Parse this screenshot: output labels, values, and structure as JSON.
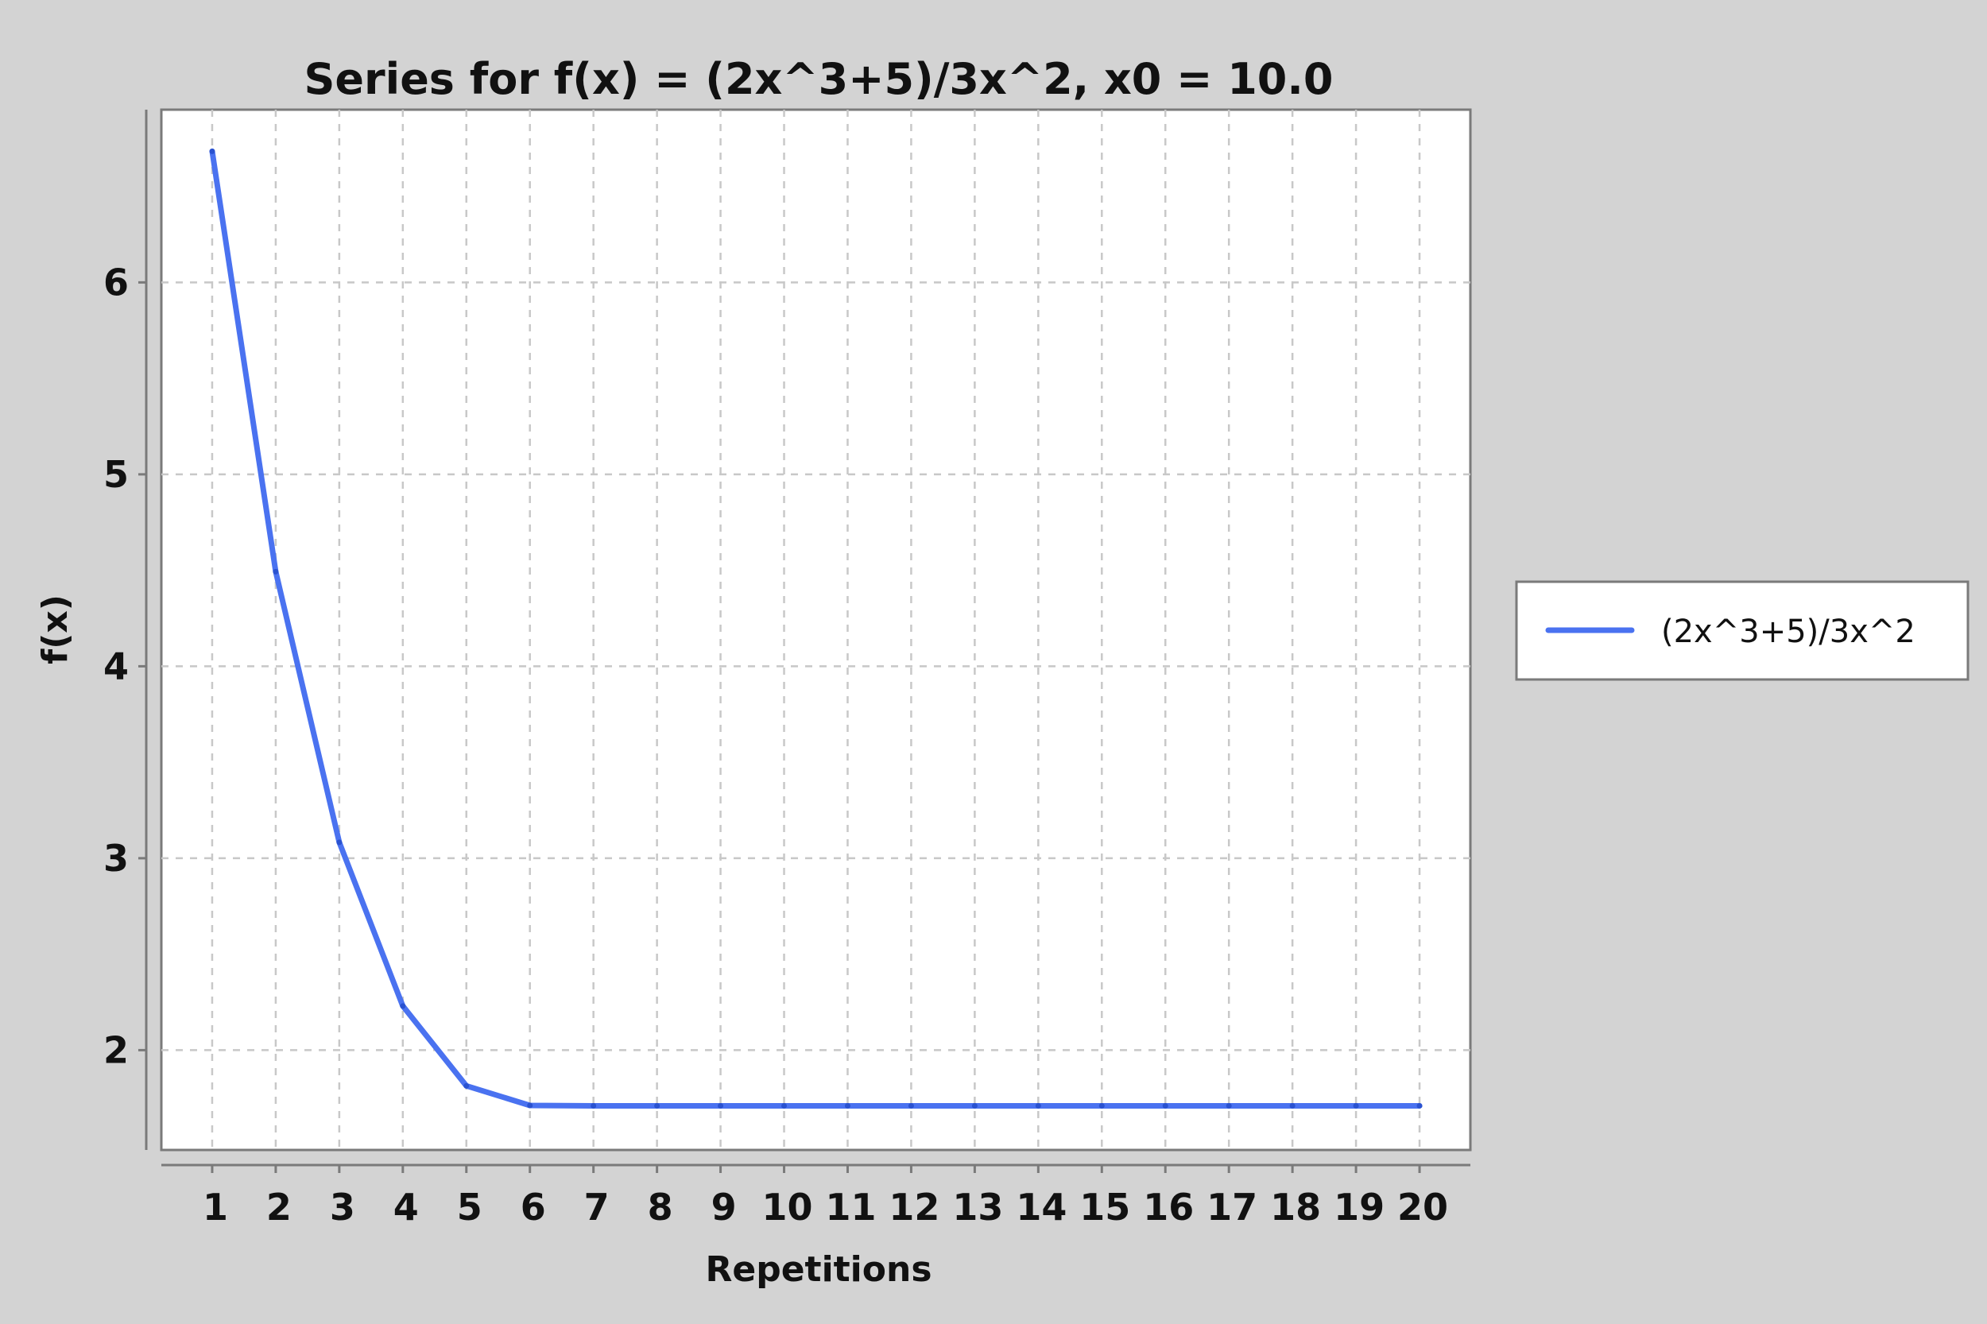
{
  "chart_data": {
    "type": "line",
    "title": "Series for f(x) = (2x^3+5)/3x^2, x0 = 10.0",
    "xlabel": "Repetitions",
    "ylabel": "f(x)",
    "x": [
      1,
      2,
      3,
      4,
      5,
      6,
      7,
      8,
      9,
      10,
      11,
      12,
      13,
      14,
      15,
      16,
      17,
      18,
      19,
      20
    ],
    "x_tick_labels": [
      "1",
      "2",
      "3",
      "4",
      "5",
      "6",
      "7",
      "8",
      "9",
      "10",
      "11",
      "12",
      "13",
      "14",
      "15",
      "16",
      "17",
      "18",
      "19",
      "20"
    ],
    "y_tick_values": [
      2,
      3,
      4,
      5,
      6
    ],
    "y_tick_labels": [
      "2",
      "3",
      "4",
      "5",
      "6"
    ],
    "xlim": [
      0.2,
      20.8
    ],
    "ylim": [
      1.48,
      6.9
    ],
    "grid": true,
    "legend_position": "right",
    "series": [
      {
        "name": "(2x^3+5)/3x^2",
        "color": "#4a72f0",
        "values": [
          6.683,
          4.493,
          3.083,
          2.23,
          1.814,
          1.712,
          1.71,
          1.71,
          1.71,
          1.71,
          1.71,
          1.71,
          1.71,
          1.71,
          1.71,
          1.71,
          1.71,
          1.71,
          1.71,
          1.71
        ]
      }
    ]
  }
}
